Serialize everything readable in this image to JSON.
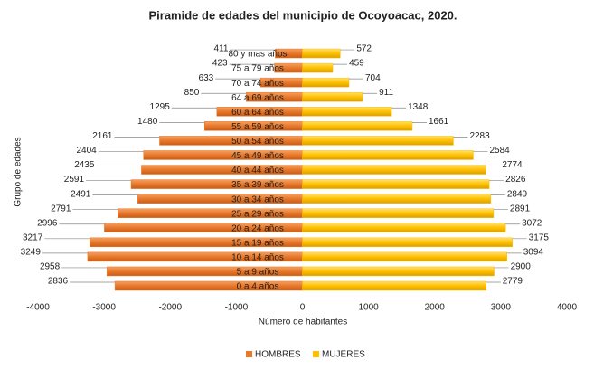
{
  "chart_data": {
    "type": "pyramid",
    "title": "Piramide de edades del municipio de Ocoyoacac, 2020.",
    "x_label": "Número de habitantes",
    "y_label": "Grupo de edades",
    "categories": [
      "0 a 4 años",
      "5 a 9 años",
      "10 a 14 años",
      "15 a 19 años",
      "20 a 24 años",
      "25 a 29 años",
      "30 a 34 años",
      "35 a 39 años",
      "40 a 44 años",
      "45 a 49 años",
      "50 a 54 años",
      "55 a 59 años",
      "60 a 64 años",
      "64 a 69 años",
      "70 a 74 años",
      "75 a 79 años",
      "80 y mas años"
    ],
    "series": [
      {
        "name": "HOMBRES",
        "color": "#e8782a",
        "values": [
          2836,
          2958,
          3249,
          3217,
          2996,
          2791,
          2491,
          2591,
          2435,
          2404,
          2161,
          1480,
          1295,
          850,
          633,
          423,
          411
        ]
      },
      {
        "name": "MUJERES",
        "color": "#ffc000",
        "values": [
          2779,
          2900,
          3094,
          3175,
          3072,
          2891,
          2849,
          2826,
          2774,
          2584,
          2283,
          1661,
          1348,
          911,
          704,
          459,
          572
        ]
      }
    ],
    "xlim": [
      -4000,
      4000
    ],
    "xticks": [
      -4000,
      -3000,
      -2000,
      -1000,
      0,
      1000,
      2000,
      3000,
      4000
    ],
    "legend": "bottom"
  }
}
